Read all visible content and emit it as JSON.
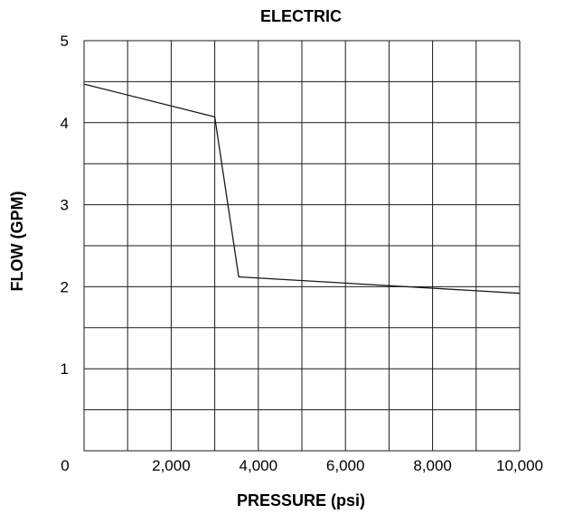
{
  "chart_data": {
    "type": "line",
    "title": "ELECTRIC",
    "xlabel": "PRESSURE (psi)",
    "ylabel": "FLOW (GPM)",
    "xlim": [
      0,
      10000
    ],
    "ylim": [
      0,
      5
    ],
    "x_ticks": [
      {
        "value": 0,
        "label": "0"
      },
      {
        "value": 2000,
        "label": "2,000"
      },
      {
        "value": 4000,
        "label": "4,000"
      },
      {
        "value": 6000,
        "label": "6,000"
      },
      {
        "value": 8000,
        "label": "8,000"
      },
      {
        "value": 10000,
        "label": "10,000"
      }
    ],
    "y_ticks": [
      {
        "value": 1,
        "label": "1"
      },
      {
        "value": 2,
        "label": "2"
      },
      {
        "value": 3,
        "label": "3"
      },
      {
        "value": 4,
        "label": "4"
      },
      {
        "value": 5,
        "label": "5"
      }
    ],
    "x_grid": [
      1000,
      2000,
      3000,
      4000,
      5000,
      6000,
      7000,
      8000,
      9000,
      10000
    ],
    "y_grid": [
      0.5,
      1,
      1.5,
      2,
      2.5,
      3,
      3.5,
      4,
      4.5,
      5
    ],
    "grid": true,
    "legend": "none",
    "series": [
      {
        "x": [
          0,
          3000,
          3550,
          10000
        ],
        "y": [
          4.47,
          4.07,
          2.12,
          1.92
        ],
        "color": "#1a1a1a"
      }
    ]
  }
}
